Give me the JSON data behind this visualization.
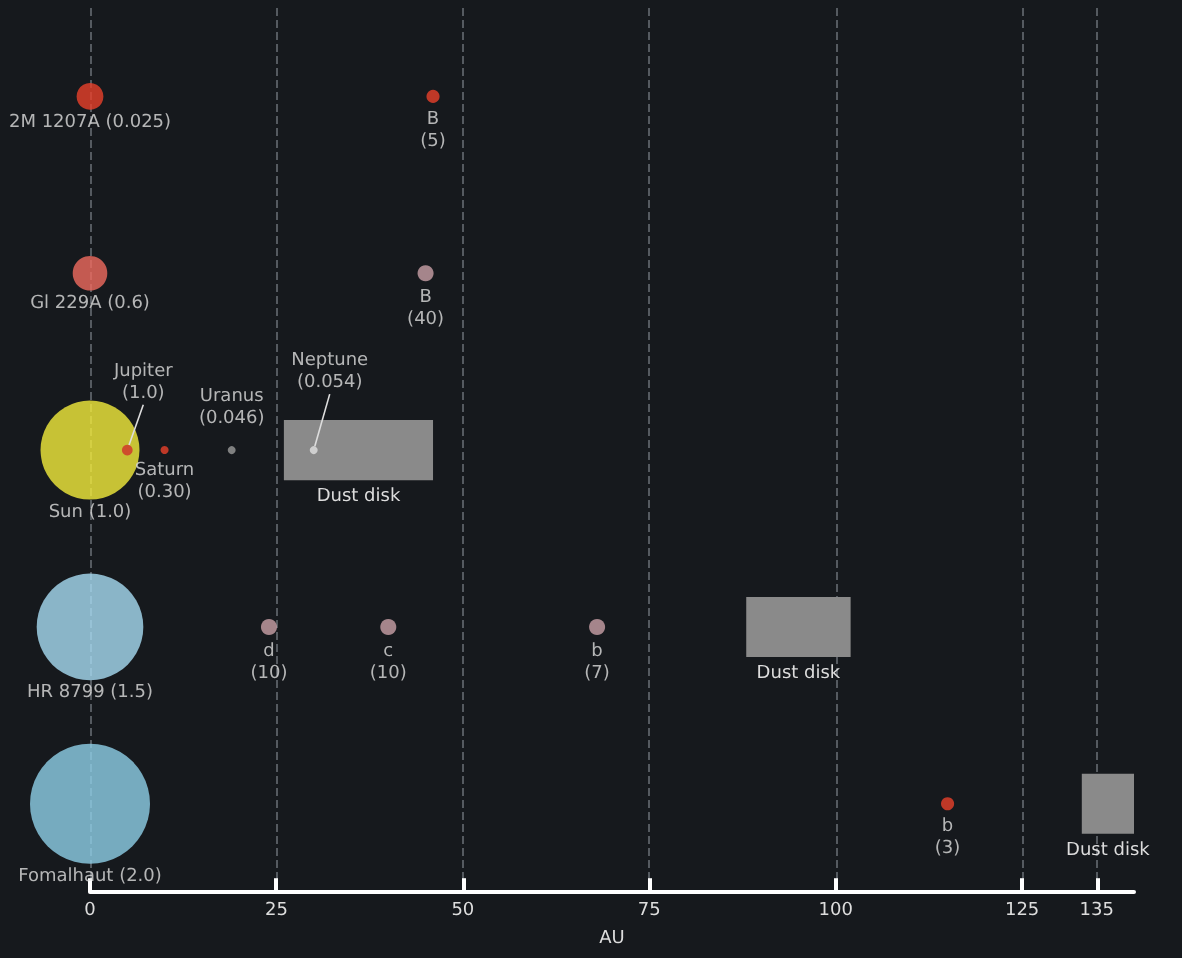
{
  "chart_data": {
    "type": "bubble",
    "orientation": "horizontal",
    "categories": [
      "2M 1207A (0.025)",
      "Gl 229A (0.6)",
      "Sun (1.0)",
      "HR 8799 (1.5)",
      "Fomalhaut (2.0)"
    ],
    "xlabel": "AU",
    "xlim": [
      0,
      140
    ],
    "xticks": [
      0,
      25,
      50,
      75,
      100,
      125,
      135
    ],
    "grid": "x",
    "series": [
      {
        "type": "bubble",
        "values": [
          0,
          0,
          0,
          0,
          0
        ],
        "sizes": [
          0.05,
          0.083,
          0.68,
          0.79,
          1
        ],
        "colors": [
          "#e8402a",
          "#f06a5f",
          "#f4ec3c",
          "#a8dcf4",
          "#8ecfe8"
        ]
      },
      {
        "type": "bubble",
        "name": "B\n(5)",
        "color": "#e8402a",
        "values": [
          46,
          null,
          null,
          null,
          null
        ],
        "sizes": [
          0.012,
          null,
          null,
          null,
          null
        ]
      },
      {
        "type": "bubble",
        "name": "B\n(40)",
        "color": "#c9a0a8",
        "values": [
          null,
          45,
          null,
          null,
          null
        ],
        "sizes": [
          null,
          0.018,
          null,
          null,
          null
        ]
      },
      {
        "name": "Jupiter\n(1.0)",
        "color": "#d0302a",
        "values": [
          null,
          null,
          5,
          null,
          null
        ],
        "sizes": [
          null,
          null,
          0.008,
          null,
          null
        ]
      },
      {
        "name": "Saturn\n(0.30)",
        "color": "#e8402a",
        "values": [
          null,
          null,
          10,
          null,
          null
        ],
        "sizes": [
          null,
          null,
          0.0045,
          null,
          null
        ]
      },
      {
        "type": "scatter",
        "name": "Uranus\n(0.046)",
        "color": "#9a9a9a",
        "values": [
          null,
          null,
          19,
          null,
          null
        ]
      },
      {
        "type": "scatter",
        "name": "Neptune\n(0.054)",
        "color": "#e0e0e0",
        "values": [
          null,
          null,
          30,
          null,
          null
        ]
      },
      {
        "name": "d\n(10)",
        "color": "#c9a0a8",
        "values": [
          null,
          null,
          null,
          24,
          null
        ],
        "sizes": [
          null,
          null,
          null,
          0.018,
          null
        ]
      },
      {
        "type": "bubble",
        "name": "c\n(10)",
        "color": "#c9a0a8",
        "values": [
          null,
          null,
          null,
          40,
          null
        ],
        "sizes": [
          null,
          null,
          null,
          0.018,
          null
        ]
      },
      {
        "type": "bubble",
        "name": "b\n(7)",
        "color": "#c9a0a8",
        "values": [
          null,
          null,
          null,
          68,
          null
        ],
        "sizes": [
          null,
          null,
          null,
          0.018,
          null
        ]
      },
      {
        "type": "bubble",
        "name": "b\n(3)",
        "color": "#e8402a",
        "values": [
          null,
          null,
          null,
          null,
          115
        ],
        "sizes": [
          null,
          null,
          null,
          null,
          0.012
        ]
      },
      {
        "type": "bar",
        "name": "Dust disk",
        "color": "#8a8a8a",
        "base": [
          null,
          null,
          26,
          88,
          133
        ],
        "values": [
          null,
          null,
          20,
          14,
          7
        ]
      }
    ]
  }
}
